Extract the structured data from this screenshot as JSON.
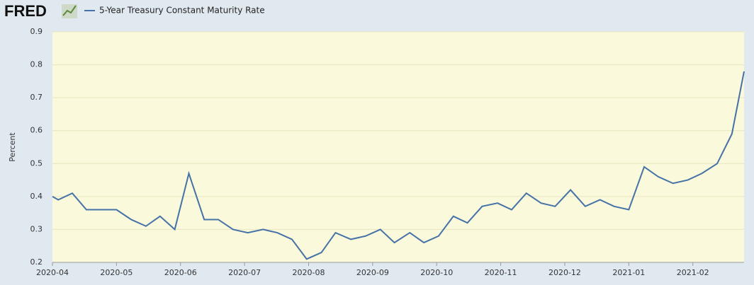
{
  "logo": "FRED",
  "chart_data": {
    "type": "line",
    "y_label": "Percent",
    "x": [
      0,
      0.09,
      0.31,
      0.53,
      0.76,
      1.0,
      1.23,
      1.46,
      1.68,
      1.91,
      2.13,
      2.37,
      2.59,
      2.82,
      3.05,
      3.29,
      3.51,
      3.74,
      3.97,
      4.2,
      4.42,
      4.66,
      4.89,
      5.12,
      5.34,
      5.58,
      5.8,
      6.03,
      6.26,
      6.48,
      6.71,
      6.95,
      7.17,
      7.4,
      7.63,
      7.85,
      8.09,
      8.32,
      8.55,
      8.77,
      9.0,
      9.24,
      9.46,
      9.69,
      9.92,
      10.14,
      10.38,
      10.61,
      10.8
    ],
    "series": [
      {
        "name": "5-Year Treasury Constant Maturity Rate",
        "color": "#4572a7",
        "values": [
          0.4,
          0.39,
          0.41,
          0.36,
          0.36,
          0.36,
          0.33,
          0.31,
          0.34,
          0.3,
          0.47,
          0.33,
          0.33,
          0.3,
          0.29,
          0.3,
          0.29,
          0.27,
          0.21,
          0.23,
          0.29,
          0.27,
          0.28,
          0.3,
          0.26,
          0.29,
          0.26,
          0.28,
          0.34,
          0.32,
          0.37,
          0.38,
          0.36,
          0.41,
          0.38,
          0.37,
          0.42,
          0.37,
          0.39,
          0.37,
          0.36,
          0.49,
          0.46,
          0.44,
          0.45,
          0.47,
          0.5,
          0.59,
          0.78
        ]
      }
    ],
    "xlim": [
      0,
      10.8
    ],
    "xticks": [
      {
        "value": 0,
        "label": "2020-04"
      },
      {
        "value": 1,
        "label": "2020-05"
      },
      {
        "value": 2,
        "label": "2020-06"
      },
      {
        "value": 3,
        "label": "2020-07"
      },
      {
        "value": 4,
        "label": "2020-08"
      },
      {
        "value": 5,
        "label": "2020-09"
      },
      {
        "value": 6,
        "label": "2020-10"
      },
      {
        "value": 7,
        "label": "2020-11"
      },
      {
        "value": 8,
        "label": "2020-12"
      },
      {
        "value": 9,
        "label": "2021-01"
      },
      {
        "value": 10,
        "label": "2021-02"
      }
    ],
    "ylim": [
      0.2,
      0.9
    ],
    "yticks": [
      0.2,
      0.3,
      0.4,
      0.5,
      0.6,
      0.7,
      0.8,
      0.9
    ],
    "grid": true
  }
}
